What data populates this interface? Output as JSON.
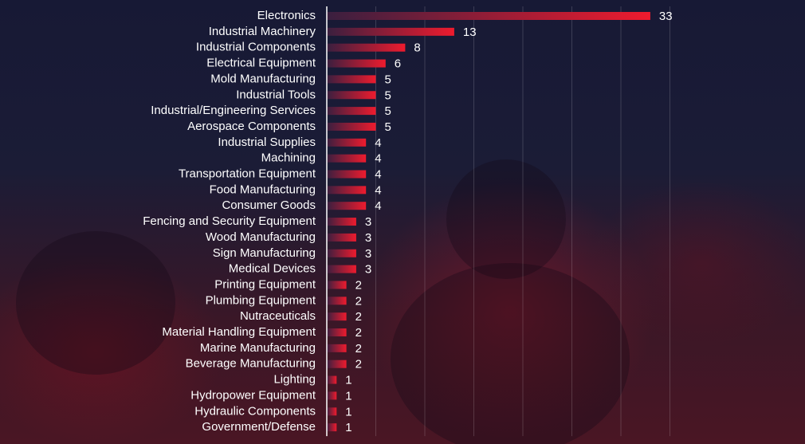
{
  "chart_data": {
    "type": "bar",
    "orientation": "horizontal",
    "categories": [
      "Electronics",
      "Industrial Machinery",
      "Industrial Components",
      "Electrical Equipment",
      "Mold Manufacturing",
      "Industrial Tools",
      "Industrial/Engineering Services",
      "Aerospace Components",
      "Industrial Supplies",
      "Machining",
      "Transportation Equipment",
      "Food Manufacturing",
      "Consumer Goods",
      "Fencing and Security Equipment",
      "Wood Manufacturing",
      "Sign Manufacturing",
      "Medical Devices",
      "Printing Equipment",
      "Plumbing Equipment",
      "Nutraceuticals",
      "Material Handling Equipment",
      "Marine Manufacturing",
      "Beverage Manufacturing",
      "Lighting",
      "Hydropower Equipment",
      "Hydraulic Components",
      "Government/Defense"
    ],
    "values": [
      33,
      13,
      8,
      6,
      5,
      5,
      5,
      5,
      4,
      4,
      4,
      4,
      4,
      3,
      3,
      3,
      3,
      2,
      2,
      2,
      2,
      2,
      2,
      1,
      1,
      1,
      1
    ],
    "title": "",
    "xlabel": "",
    "ylabel": "",
    "xlim": [
      0,
      35
    ],
    "grid": true,
    "data_labels": true,
    "colors": {
      "bar_start": "#3a1f3f",
      "bar_end": "#ee1b2e",
      "text": "#ffffff",
      "background": "#181a33"
    }
  }
}
